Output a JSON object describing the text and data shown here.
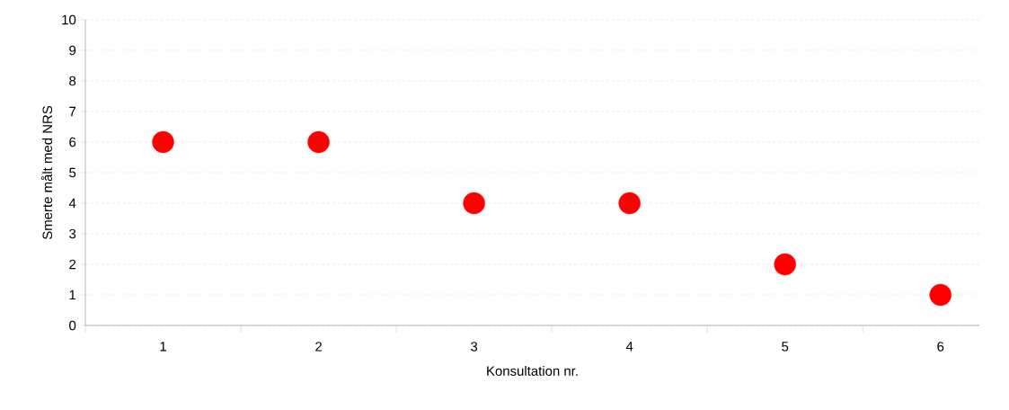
{
  "chart_data": {
    "type": "scatter",
    "xlabel": "Konsultation nr.",
    "ylabel": "Smerte målt med NRS",
    "categories": [
      "1",
      "2",
      "3",
      "4",
      "5",
      "6"
    ],
    "values": [
      6,
      6,
      4,
      4,
      2,
      1
    ],
    "color": "#ff0000",
    "ylim": [
      0,
      10
    ],
    "yticks": [
      0,
      1,
      2,
      3,
      4,
      5,
      6,
      7,
      8,
      9,
      10
    ],
    "grid": "y",
    "marker": "circle"
  }
}
